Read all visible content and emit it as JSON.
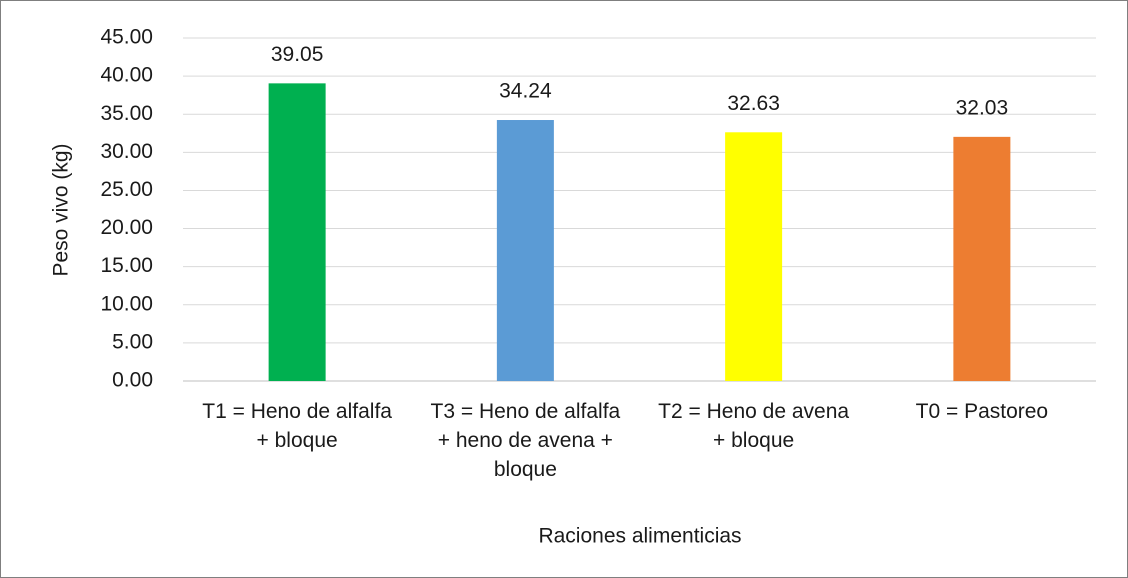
{
  "chart_data": {
    "type": "bar",
    "categories": [
      "T1 = Heno de alfalfa + bloque",
      "T3 = Heno de alfalfa + heno de avena + bloque",
      "T2 = Heno de avena + bloque",
      "T0 = Pastoreo"
    ],
    "values": [
      39.05,
      34.24,
      32.63,
      32.03
    ],
    "colors": [
      "#00b050",
      "#5b9bd5",
      "#ffff00",
      "#ed7d31"
    ],
    "ylabel": "Peso vivo (kg)",
    "xlabel": "Raciones alimenticias",
    "ylim": [
      0,
      45
    ],
    "yticks": [
      {
        "value": 0,
        "label": "0.00"
      },
      {
        "value": 5,
        "label": "5.00"
      },
      {
        "value": 10,
        "label": "10.00"
      },
      {
        "value": 15,
        "label": "15.00"
      },
      {
        "value": 20,
        "label": "20.00"
      },
      {
        "value": 25,
        "label": "25.00"
      },
      {
        "value": 30,
        "label": "30.00"
      },
      {
        "value": 35,
        "label": "35.00"
      },
      {
        "value": 40,
        "label": "40.00"
      },
      {
        "value": 45,
        "label": "45.00"
      }
    ],
    "grid": true
  }
}
